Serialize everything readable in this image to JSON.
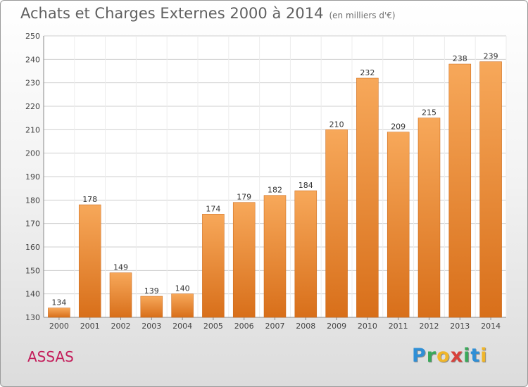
{
  "title": "Achats et Charges Externes 2000 à 2014",
  "unit": "(en milliers d'€)",
  "town": "ASSAS",
  "logo": {
    "letters": [
      "P",
      "r",
      "o",
      "x",
      "i",
      "t",
      "i"
    ]
  },
  "colors": {
    "bar_top": "#f7a85a",
    "bar_bottom": "#d86f1a",
    "bar_edge": "#c86414",
    "grid": "#cfcfcf"
  },
  "chart_data": {
    "type": "bar",
    "title": "Achats et Charges Externes 2000 à 2014",
    "subtitle": "(en milliers d'€)",
    "xlabel": "",
    "ylabel": "",
    "categories": [
      "2000",
      "2001",
      "2002",
      "2003",
      "2004",
      "2005",
      "2006",
      "2007",
      "2008",
      "2009",
      "2010",
      "2011",
      "2012",
      "2013",
      "2014"
    ],
    "values": [
      134,
      178,
      149,
      139,
      140,
      174,
      179,
      182,
      184,
      210,
      232,
      209,
      215,
      238,
      239
    ],
    "ylim": [
      130,
      250
    ],
    "yticks": [
      130,
      140,
      150,
      160,
      170,
      180,
      190,
      200,
      210,
      220,
      230,
      240,
      250
    ],
    "grid": true,
    "legend": "none"
  }
}
